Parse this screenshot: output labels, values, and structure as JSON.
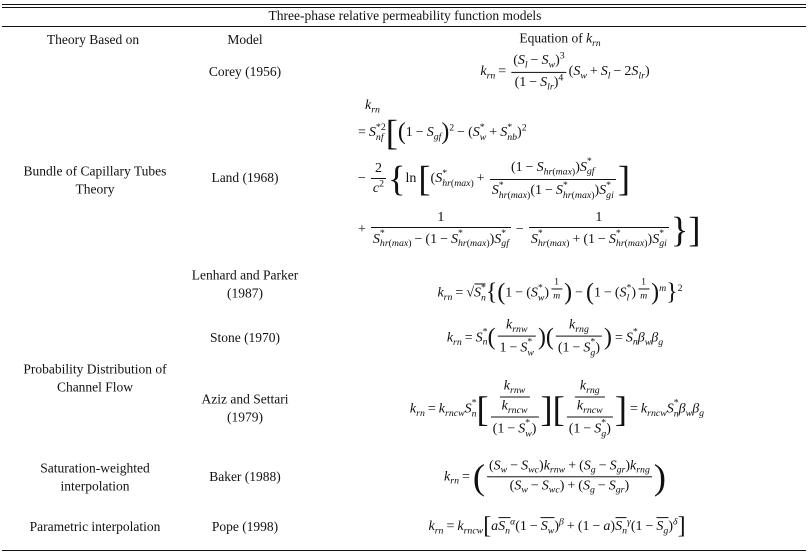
{
  "table": {
    "title": "Three-phase relative permeability function models",
    "headers": {
      "theory": "Theory Based on",
      "model": "Model",
      "equation": "Equation of k_{rn}"
    },
    "theories": [
      "Bundle of Capillary Tubes Theory",
      "Probability Distribution of Channel Flow",
      "Saturation-weighted interpolation",
      "Parametric interpolation"
    ],
    "models": [
      {
        "name": "Corey (1956)",
        "equation": [
          "k_{rn} = \\frac{(S_l − S_w)^3}{(1 − S_{lr})^4}(S_w + S_l − 2S_{lr})"
        ]
      },
      {
        "name": "Land (1968)",
        "equation": [
          "k_{rn}",
          "= S^{*2}_{nf}\\Big[\\big(1 − S_{gf}\\big)^2 − (S^*_w + S^*_{nb})^2",
          "− \\frac{2}{c^2}\\Big\\{\\ln\\Big[(S^*_{hr(max)} + \\frac{(1 − S_{hr(max)})S^*_{gf}}{S^*_{hr(max)}(1 − S^*_{hr(max)})S^*_{gi}}\\Big]",
          "+ \\frac{1}{S^*_{hr(max)} − (1 − S^*_{hr(max)})S^*_{gf}} − \\frac{1}{S^*_{hr(max)} + (1 − S^*_{hr(max)})S^*_{gi}}\\Big\\}\\Big]"
        ]
      },
      {
        "name": "Lenhard and Parker (1987)",
        "equation": [
          "k_{rn} = \\sqrt{S^*_n}\\big\\{\\big(1 − (S^*_w)^{\\frac{1}{m}}\\big) − \\big(1 − (S^*_l)^{\\frac{1}{m}}\\big)^m\\big\\}^2"
        ]
      },
      {
        "name": "Stone (1970)",
        "equation": [
          "k_{rn} = S^*_n\\big(\\frac{k_{rnw}}{1 − S^*_w}\\big)\\big(\\frac{k_{rng}}{(1 − S^*_g)}\\big) = S^*_nβ_wβ_g"
        ]
      },
      {
        "name": "Aziz and Settari (1979)",
        "equation": [
          "k_{rn} = k_{rncw}S^*_n\\Big[\\frac{\\frac{k_{rnw}}{k_{rncw}}}{(1 − S^*_w)}\\Big]\\Big[\\frac{\\frac{k_{rng}}{k_{rncw}}}{(1 − S^*_g)}\\Big] = k_{rncw}S^*_nβ_wβ_g"
        ]
      },
      {
        "name": "Baker (1988)",
        "equation": [
          "k_{rn} = \\Big(\\frac{(S_w − S_{wc})k_{rnw} + (S_g − S_{gr})k_{rng}}{(S_w − S_{wc}) + (S_g − S_{gr})}\\Big)"
        ]
      },
      {
        "name": "Pope (1998)",
        "equation": [
          "k_{rn} = k_{rncw}\\big[a\\bar{S_n}^α(1 − \\bar{S_w})^β + (1 − a)\\bar{S_n}^γ(1 − \\bar{S_g})^δ\\big]"
        ]
      }
    ]
  }
}
